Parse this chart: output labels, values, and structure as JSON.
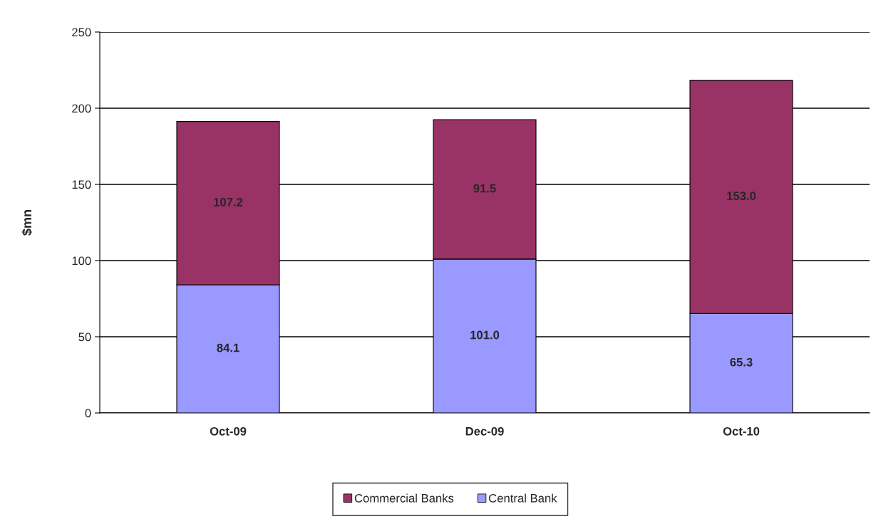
{
  "chart_data": {
    "type": "bar",
    "stacked": true,
    "ylabel": "$mn",
    "categories": [
      "Oct-09",
      "Dec-09",
      "Oct-10"
    ],
    "series": [
      {
        "name": "Central Bank",
        "color": "#9999ff",
        "values": [
          84.1,
          101.0,
          65.3
        ],
        "value_labels": [
          "84.1",
          "101.0",
          "65.3"
        ]
      },
      {
        "name": "Commercial Banks",
        "color": "#993366",
        "values": [
          107.2,
          91.5,
          153.0
        ],
        "value_labels": [
          "107.2",
          "91.5",
          "153.0"
        ]
      }
    ],
    "ylim": [
      0,
      250
    ],
    "yticks": [
      0,
      50,
      100,
      150,
      200,
      250
    ],
    "grid": "y",
    "legend": "bottom"
  }
}
